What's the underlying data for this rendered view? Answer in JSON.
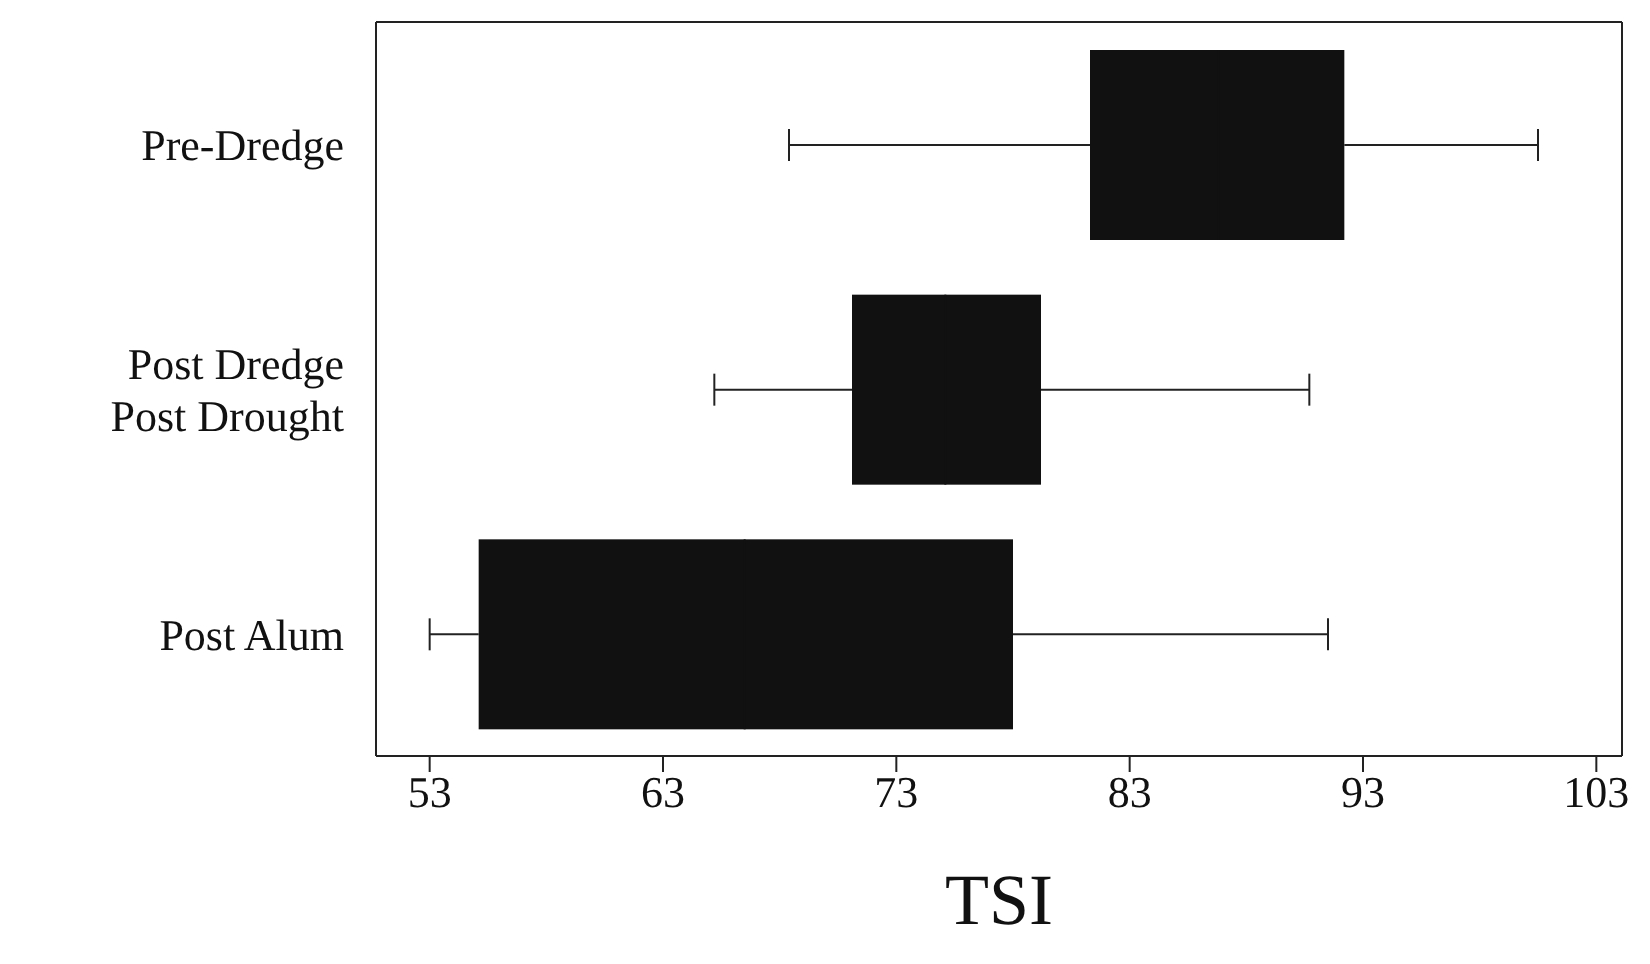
{
  "chart_data": {
    "type": "box",
    "orientation": "horizontal",
    "xlabel": "TSI",
    "categories": [
      "Pre-Dredge",
      "Post Dredge Post Drought",
      "Post Alum"
    ],
    "color": "#111111",
    "boxes": [
      {
        "low": 68.4,
        "q1": 81.3,
        "median": 86.8,
        "q3": 92.2,
        "high": 100.5
      },
      {
        "low": 65.2,
        "q1": 71.1,
        "median": 75.1,
        "q3": 79.2,
        "high": 90.7
      },
      {
        "low": 53.0,
        "q1": 55.1,
        "median": 66.5,
        "q3": 78.0,
        "high": 91.5
      }
    ],
    "xlim": [
      50.7,
      104.1
    ],
    "xticks": [
      53,
      63,
      73,
      83,
      93,
      103
    ]
  }
}
